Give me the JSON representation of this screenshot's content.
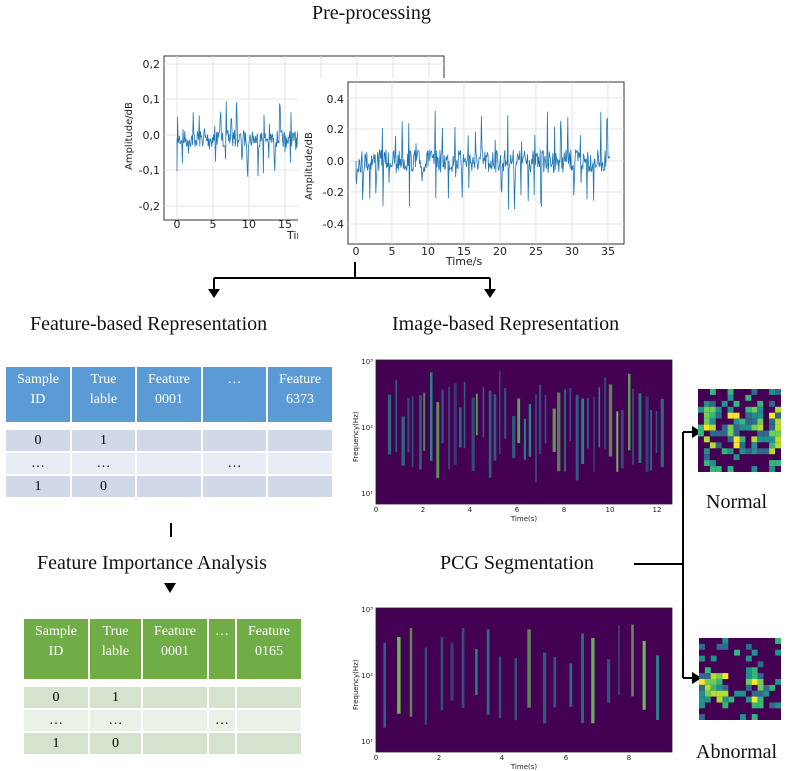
{
  "titles": {
    "preprocessing": "Pre-processing",
    "feature_repr": "Feature-based Representation",
    "image_repr": "Image-based Representation",
    "importance": "Feature Importance Analysis",
    "segmentation": "PCG Segmentation",
    "normal": "Normal",
    "abnormal": "Abnormal"
  },
  "waveforms": {
    "back": {
      "ylabel": "Amplitude/dB",
      "xlabel": "Tir",
      "yticks": [
        "0,2",
        "0,1",
        "0,0",
        "-0,1",
        "-0,2"
      ],
      "xticks": [
        "0",
        "5",
        "10",
        "15"
      ]
    },
    "front": {
      "ylabel": "Amplitude/dB",
      "xlabel": "Time/s",
      "yticks": [
        "0.4",
        "0.2",
        "0.0",
        "-0.2",
        "-0.4"
      ],
      "xticks": [
        "0",
        "5",
        "10",
        "15",
        "20",
        "25",
        "30",
        "35"
      ]
    }
  },
  "spectrograms": {
    "top": {
      "ylabel": "Frequency(Hz)",
      "xlabel": "Time(s)",
      "yticks": [
        "10³",
        "10²",
        "10¹"
      ],
      "xticks": [
        "0",
        "2",
        "4",
        "6",
        "8",
        "10",
        "12"
      ]
    },
    "bottom": {
      "ylabel": "Frequency(Hz)",
      "xlabel": "Time(s)",
      "yticks": [
        "10³",
        "10²",
        "10¹"
      ],
      "xticks": [
        "0",
        "2",
        "4",
        "6",
        "8"
      ]
    }
  },
  "feature_table": {
    "headers": [
      [
        "Sample",
        "ID"
      ],
      [
        "True",
        "lable"
      ],
      [
        "Feature",
        "0001"
      ],
      [
        "…",
        ""
      ],
      [
        "Feature",
        "6373"
      ]
    ],
    "rows": [
      [
        "0",
        "1",
        "",
        "",
        ""
      ],
      [
        "…",
        "…",
        "",
        "…",
        ""
      ],
      [
        "1",
        "0",
        "",
        "",
        ""
      ]
    ]
  },
  "selected_table": {
    "headers": [
      [
        "Sample",
        "ID"
      ],
      [
        "True",
        "lable"
      ],
      [
        "Feature",
        "0001"
      ],
      [
        "…",
        ""
      ],
      [
        "Feature",
        "0165"
      ]
    ],
    "rows": [
      [
        "0",
        "1",
        "",
        "",
        ""
      ],
      [
        "…",
        "…",
        "",
        "…",
        ""
      ],
      [
        "1",
        "0",
        "",
        "",
        ""
      ]
    ]
  },
  "colors": {
    "waveform": "#1f77b4",
    "blue_header": "#5b9bd5",
    "green_header": "#70ad47",
    "spectrogram_bg": "#440154"
  }
}
